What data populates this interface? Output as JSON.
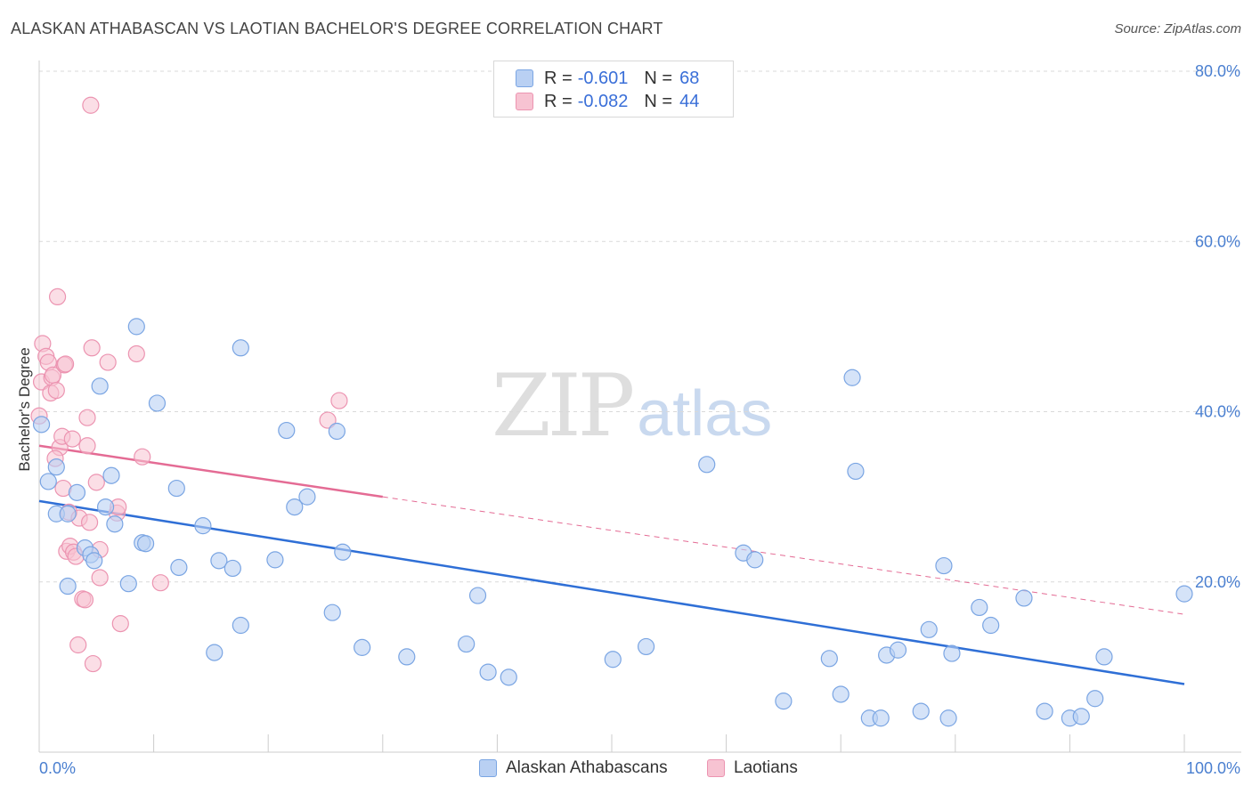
{
  "title": "ALASKAN ATHABASCAN VS LAOTIAN BACHELOR'S DEGREE CORRELATION CHART",
  "source": "Source: ZipAtlas.com",
  "watermark": {
    "zip": "ZIP",
    "atlas": "atlas"
  },
  "legend_top": [
    {
      "r_label": "R =",
      "r_value": "-0.601",
      "n_label": "N =",
      "n_value": "68"
    },
    {
      "r_label": "R =",
      "r_value": "-0.082",
      "n_label": "N =",
      "n_value": "44"
    }
  ],
  "legend_bottom": [
    "Alaskan Athabascans",
    "Laotians"
  ],
  "colors": {
    "blue_fill": "#b9d0f3",
    "blue_stroke": "#7aa5e3",
    "blue_line": "#2f6fd6",
    "pink_fill": "#f7c3d2",
    "pink_stroke": "#ec94b1",
    "pink_line": "#e46b94",
    "grid": "#d9d9d9",
    "axis": "#cccccc",
    "tick_text": "#4a7fd0"
  },
  "chart_data": {
    "type": "scatter",
    "title": "ALASKAN ATHABASCAN VS LAOTIAN BACHELOR'S DEGREE CORRELATION CHART",
    "xlabel": "",
    "ylabel": "Bachelor's Degree",
    "xlim": [
      0,
      100
    ],
    "ylim": [
      0,
      80
    ],
    "x_tick_labels": [
      "0.0%",
      "100.0%"
    ],
    "y_ticks": [
      20,
      40,
      60,
      80
    ],
    "y_tick_labels": [
      "20.0%",
      "40.0%",
      "60.0%",
      "80.0%"
    ],
    "grid": true,
    "legend_position": "top-center",
    "series": [
      {
        "name": "Alaskan Athabascans",
        "color": "#b9d0f3",
        "trend": {
          "x": [
            0,
            100
          ],
          "y": [
            29.5,
            8.0
          ],
          "style": "solid"
        },
        "points": [
          [
            0.2,
            38.5
          ],
          [
            0.8,
            31.8
          ],
          [
            1.5,
            33.5
          ],
          [
            1.5,
            28.0
          ],
          [
            2.5,
            19.5
          ],
          [
            2.5,
            28.0
          ],
          [
            3.3,
            30.5
          ],
          [
            4.0,
            24.0
          ],
          [
            4.5,
            23.2
          ],
          [
            4.8,
            22.5
          ],
          [
            5.3,
            43.0
          ],
          [
            5.8,
            28.8
          ],
          [
            6.3,
            32.5
          ],
          [
            6.6,
            26.8
          ],
          [
            7.8,
            19.8
          ],
          [
            8.5,
            50.0
          ],
          [
            9.0,
            24.6
          ],
          [
            9.3,
            24.5
          ],
          [
            10.3,
            41.0
          ],
          [
            12.0,
            31.0
          ],
          [
            12.2,
            21.7
          ],
          [
            14.3,
            26.6
          ],
          [
            15.3,
            11.7
          ],
          [
            15.7,
            22.5
          ],
          [
            16.9,
            21.6
          ],
          [
            17.6,
            14.9
          ],
          [
            17.6,
            47.5
          ],
          [
            20.6,
            22.6
          ],
          [
            21.6,
            37.8
          ],
          [
            22.3,
            28.8
          ],
          [
            23.4,
            30.0
          ],
          [
            25.6,
            16.4
          ],
          [
            26.0,
            37.7
          ],
          [
            26.5,
            23.5
          ],
          [
            28.2,
            12.3
          ],
          [
            32.1,
            11.2
          ],
          [
            37.3,
            12.7
          ],
          [
            38.3,
            18.4
          ],
          [
            39.2,
            9.4
          ],
          [
            41.0,
            8.8
          ],
          [
            50.1,
            10.9
          ],
          [
            53.0,
            12.4
          ],
          [
            58.3,
            33.8
          ],
          [
            61.5,
            23.4
          ],
          [
            62.5,
            22.6
          ],
          [
            65.0,
            6.0
          ],
          [
            69.0,
            11.0
          ],
          [
            70.0,
            6.8
          ],
          [
            71.0,
            44.0
          ],
          [
            71.3,
            33.0
          ],
          [
            72.5,
            4.0
          ],
          [
            73.5,
            4.0
          ],
          [
            74.0,
            11.4
          ],
          [
            75.0,
            12.0
          ],
          [
            77.0,
            4.8
          ],
          [
            77.7,
            14.4
          ],
          [
            79.0,
            21.9
          ],
          [
            79.4,
            4.0
          ],
          [
            79.7,
            11.6
          ],
          [
            82.1,
            17.0
          ],
          [
            83.1,
            14.9
          ],
          [
            86.0,
            18.1
          ],
          [
            87.8,
            4.8
          ],
          [
            90.0,
            4.0
          ],
          [
            91.0,
            4.2
          ],
          [
            92.2,
            6.3
          ],
          [
            93.0,
            11.2
          ],
          [
            100.0,
            18.6
          ]
        ]
      },
      {
        "name": "Laotians",
        "color": "#f7c3d2",
        "trend": {
          "x": [
            0,
            30
          ],
          "y": [
            36.0,
            30.0
          ],
          "style": "solid",
          "dashed_extension": {
            "x": [
              30,
              100
            ],
            "y": [
              30.0,
              16.2
            ]
          }
        },
        "points": [
          [
            0.0,
            39.5
          ],
          [
            0.2,
            43.5
          ],
          [
            0.3,
            48.0
          ],
          [
            0.6,
            46.5
          ],
          [
            0.8,
            45.8
          ],
          [
            1.0,
            42.2
          ],
          [
            1.1,
            44.0
          ],
          [
            1.2,
            44.3
          ],
          [
            1.5,
            42.5
          ],
          [
            1.6,
            53.5
          ],
          [
            1.8,
            35.8
          ],
          [
            2.0,
            37.1
          ],
          [
            2.1,
            31.0
          ],
          [
            2.2,
            45.5
          ],
          [
            2.3,
            45.6
          ],
          [
            2.4,
            23.6
          ],
          [
            2.6,
            28.2
          ],
          [
            2.7,
            24.2
          ],
          [
            2.9,
            36.8
          ],
          [
            3.0,
            23.5
          ],
          [
            3.4,
            12.6
          ],
          [
            3.5,
            27.5
          ],
          [
            3.8,
            18.0
          ],
          [
            4.0,
            17.9
          ],
          [
            4.2,
            39.3
          ],
          [
            4.2,
            36.0
          ],
          [
            4.4,
            27.0
          ],
          [
            4.5,
            76.0
          ],
          [
            4.7,
            10.4
          ],
          [
            4.6,
            47.5
          ],
          [
            5.0,
            31.7
          ],
          [
            5.3,
            23.8
          ],
          [
            5.3,
            20.5
          ],
          [
            6.0,
            45.8
          ],
          [
            6.8,
            28.1
          ],
          [
            6.9,
            28.8
          ],
          [
            7.1,
            15.1
          ],
          [
            8.5,
            46.8
          ],
          [
            9.0,
            34.7
          ],
          [
            10.6,
            19.9
          ],
          [
            25.2,
            39.0
          ],
          [
            26.2,
            41.3
          ],
          [
            1.4,
            34.5
          ],
          [
            3.2,
            23.0
          ]
        ]
      }
    ]
  }
}
